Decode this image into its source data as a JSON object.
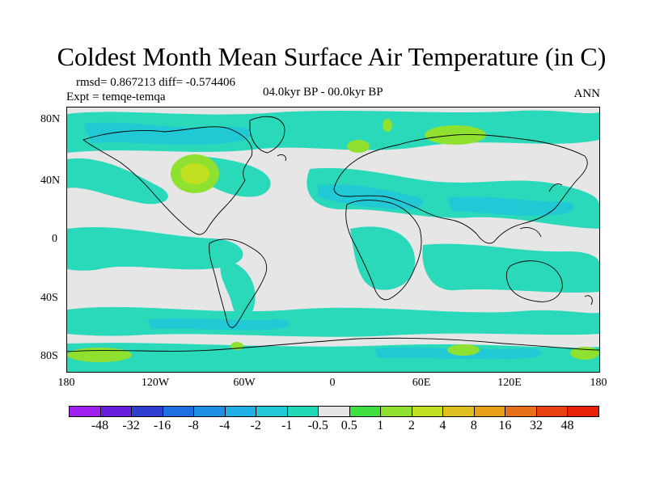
{
  "title": "Coldest Month Mean Surface Air Temperature (in C)",
  "stats": "rmsd= 0.867213 diff= -0.574406",
  "expt": "Expt = temqe-temqa",
  "period": "04.0kyr BP - 00.0kyr BP",
  "season": "ANN",
  "y_ticks": [
    "80N",
    "40N",
    "0",
    "40S",
    "80S"
  ],
  "x_ticks": [
    "180",
    "120W",
    "60W",
    "0",
    "60E",
    "120E",
    "180"
  ],
  "colorbar": {
    "labels": [
      "-48",
      "-32",
      "-16",
      "-8",
      "-4",
      "-2",
      "-1",
      "-0.5",
      "0.5",
      "1",
      "2",
      "4",
      "8",
      "16",
      "32",
      "48"
    ],
    "colors": [
      "#a020f0",
      "#6a1fe0",
      "#2f3fd0",
      "#1e6fe0",
      "#1e90e6",
      "#1fb0e6",
      "#20c8d8",
      "#20d8b8",
      "#e6e6e6",
      "#40e040",
      "#90e030",
      "#c0e020",
      "#e0c020",
      "#e8a018",
      "#e87018",
      "#e84010",
      "#e82008"
    ]
  }
}
